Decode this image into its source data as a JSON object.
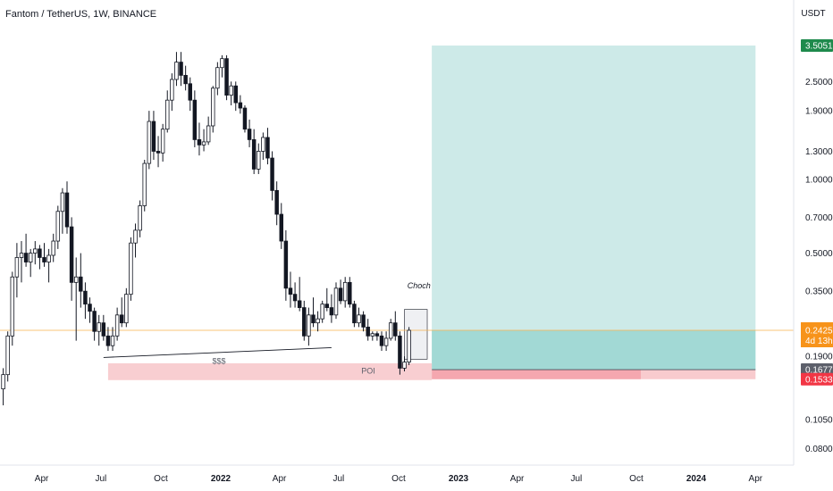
{
  "chart_data": {
    "type": "candlestick",
    "title": "Fantom / TetherUS, 1W, BINANCE",
    "y_unit_label": "USDT",
    "y_scale": "log",
    "ylim": [
      0.065,
      4.5
    ],
    "y_ticks": [
      "2.5000",
      "1.9000",
      "1.3000",
      "1.0000",
      "0.7000",
      "0.5000",
      "0.3500",
      "0.1900",
      "0.1050",
      "0.0800"
    ],
    "x_ticks": [
      {
        "label": "Apr",
        "bold": false,
        "date": "2021-04-01"
      },
      {
        "label": "Jul",
        "bold": false,
        "date": "2021-07-01"
      },
      {
        "label": "Oct",
        "bold": false,
        "date": "2021-10-01"
      },
      {
        "label": "2022",
        "bold": true,
        "date": "2022-01-01"
      },
      {
        "label": "Apr",
        "bold": false,
        "date": "2022-04-01"
      },
      {
        "label": "Jul",
        "bold": false,
        "date": "2022-07-01"
      },
      {
        "label": "Oct",
        "bold": false,
        "date": "2022-10-01"
      },
      {
        "label": "2023",
        "bold": true,
        "date": "2023-01-01"
      },
      {
        "label": "Apr",
        "bold": false,
        "date": "2023-04-01"
      },
      {
        "label": "Jul",
        "bold": false,
        "date": "2023-07-01"
      },
      {
        "label": "Oct",
        "bold": false,
        "date": "2023-10-01"
      },
      {
        "label": "2024",
        "bold": true,
        "date": "2024-01-01"
      },
      {
        "label": "Apr",
        "bold": false,
        "date": "2024-04-01"
      }
    ],
    "first_candle_date": "2021-02-01",
    "candle_interval": "1W",
    "candles": [
      [
        0.14,
        0.17,
        0.12,
        0.16
      ],
      [
        0.16,
        0.24,
        0.15,
        0.23
      ],
      [
        0.23,
        0.42,
        0.21,
        0.4
      ],
      [
        0.4,
        0.55,
        0.33,
        0.48
      ],
      [
        0.48,
        0.56,
        0.38,
        0.5
      ],
      [
        0.5,
        0.6,
        0.44,
        0.46
      ],
      [
        0.46,
        0.52,
        0.4,
        0.5
      ],
      [
        0.5,
        0.56,
        0.45,
        0.52
      ],
      [
        0.52,
        0.54,
        0.43,
        0.48
      ],
      [
        0.48,
        0.55,
        0.44,
        0.46
      ],
      [
        0.46,
        0.52,
        0.38,
        0.49
      ],
      [
        0.49,
        0.6,
        0.46,
        0.56
      ],
      [
        0.56,
        0.78,
        0.52,
        0.74
      ],
      [
        0.74,
        0.92,
        0.6,
        0.88
      ],
      [
        0.88,
        0.98,
        0.6,
        0.64
      ],
      [
        0.64,
        0.7,
        0.32,
        0.38
      ],
      [
        0.38,
        0.48,
        0.22,
        0.4
      ],
      [
        0.4,
        0.5,
        0.3,
        0.35
      ],
      [
        0.35,
        0.38,
        0.27,
        0.31
      ],
      [
        0.31,
        0.33,
        0.26,
        0.29
      ],
      [
        0.29,
        0.3,
        0.22,
        0.24
      ],
      [
        0.24,
        0.28,
        0.21,
        0.26
      ],
      [
        0.26,
        0.28,
        0.22,
        0.23
      ],
      [
        0.23,
        0.25,
        0.2,
        0.21
      ],
      [
        0.21,
        0.25,
        0.2,
        0.23
      ],
      [
        0.23,
        0.3,
        0.22,
        0.28
      ],
      [
        0.28,
        0.33,
        0.25,
        0.26
      ],
      [
        0.26,
        0.36,
        0.25,
        0.34
      ],
      [
        0.34,
        0.58,
        0.32,
        0.55
      ],
      [
        0.55,
        0.66,
        0.48,
        0.62
      ],
      [
        0.62,
        0.82,
        0.58,
        0.78
      ],
      [
        0.78,
        1.2,
        0.74,
        1.16
      ],
      [
        1.16,
        1.9,
        1.1,
        1.72
      ],
      [
        1.72,
        1.9,
        1.2,
        1.3
      ],
      [
        1.3,
        1.5,
        1.12,
        1.28
      ],
      [
        1.28,
        1.68,
        1.18,
        1.6
      ],
      [
        1.6,
        2.3,
        1.55,
        2.1
      ],
      [
        2.1,
        2.7,
        1.9,
        2.55
      ],
      [
        2.55,
        3.3,
        2.4,
        3.0
      ],
      [
        3.0,
        3.3,
        2.4,
        2.65
      ],
      [
        2.65,
        2.9,
        2.3,
        2.45
      ],
      [
        2.45,
        2.6,
        1.9,
        2.1
      ],
      [
        2.1,
        2.3,
        1.35,
        1.45
      ],
      [
        1.45,
        1.7,
        1.25,
        1.38
      ],
      [
        1.38,
        1.6,
        1.3,
        1.42
      ],
      [
        1.42,
        1.8,
        1.38,
        1.65
      ],
      [
        1.65,
        2.4,
        1.55,
        2.35
      ],
      [
        2.35,
        3.0,
        2.2,
        2.85
      ],
      [
        2.85,
        3.2,
        2.6,
        3.1
      ],
      [
        3.1,
        3.2,
        2.1,
        2.2
      ],
      [
        2.2,
        2.5,
        2.0,
        2.4
      ],
      [
        2.4,
        2.5,
        1.9,
        2.05
      ],
      [
        2.05,
        2.2,
        1.85,
        1.95
      ],
      [
        1.95,
        2.0,
        1.55,
        1.6
      ],
      [
        1.6,
        1.75,
        1.35,
        1.45
      ],
      [
        1.45,
        1.6,
        1.05,
        1.1
      ],
      [
        1.1,
        1.4,
        1.05,
        1.3
      ],
      [
        1.3,
        1.55,
        1.2,
        1.48
      ],
      [
        1.48,
        1.62,
        1.15,
        1.22
      ],
      [
        1.22,
        1.3,
        0.82,
        0.9
      ],
      [
        0.9,
        0.98,
        0.65,
        0.72
      ],
      [
        0.72,
        0.8,
        0.52,
        0.56
      ],
      [
        0.56,
        0.62,
        0.32,
        0.36
      ],
      [
        0.36,
        0.42,
        0.3,
        0.34
      ],
      [
        0.34,
        0.38,
        0.3,
        0.32
      ],
      [
        0.32,
        0.4,
        0.29,
        0.3
      ],
      [
        0.3,
        0.32,
        0.22,
        0.23
      ],
      [
        0.23,
        0.3,
        0.21,
        0.28
      ],
      [
        0.28,
        0.33,
        0.25,
        0.26
      ],
      [
        0.26,
        0.29,
        0.24,
        0.27
      ],
      [
        0.27,
        0.32,
        0.26,
        0.31
      ],
      [
        0.31,
        0.36,
        0.29,
        0.3
      ],
      [
        0.3,
        0.34,
        0.26,
        0.28
      ],
      [
        0.28,
        0.38,
        0.27,
        0.36
      ],
      [
        0.36,
        0.39,
        0.31,
        0.32
      ],
      [
        0.32,
        0.4,
        0.3,
        0.38
      ],
      [
        0.38,
        0.4,
        0.3,
        0.31
      ],
      [
        0.31,
        0.32,
        0.25,
        0.26
      ],
      [
        0.26,
        0.3,
        0.25,
        0.28
      ],
      [
        0.28,
        0.29,
        0.24,
        0.25
      ],
      [
        0.25,
        0.27,
        0.22,
        0.23
      ],
      [
        0.23,
        0.24,
        0.22,
        0.235
      ],
      [
        0.235,
        0.24,
        0.22,
        0.23
      ],
      [
        0.23,
        0.24,
        0.2,
        0.21
      ],
      [
        0.21,
        0.24,
        0.2,
        0.225
      ],
      [
        0.225,
        0.27,
        0.22,
        0.26
      ],
      [
        0.26,
        0.29,
        0.22,
        0.23
      ],
      [
        0.23,
        0.24,
        0.16,
        0.17
      ],
      [
        0.17,
        0.19,
        0.165,
        0.18
      ],
      [
        0.18,
        0.25,
        0.175,
        0.2425
      ]
    ],
    "annotations": {
      "choch": "Choch",
      "sss": "$$$",
      "poi": "POI"
    },
    "price_labels": {
      "target": "3.5051",
      "current": "0.2425",
      "countdown": "4d 13h",
      "entry": "0.1677",
      "stop": "0.1533"
    },
    "position": {
      "target": 3.5051,
      "entry": 0.1677,
      "stop": 0.1533,
      "start_date": "2022-11-21",
      "end_date": "2024-04-01"
    },
    "colors": {
      "up": "#26a69a",
      "down": "#131722",
      "profit_zone": "#b2dfdb",
      "profit_zone_strong": "#80cbc4",
      "loss_zone": "#f7c5c9",
      "current_badge": "#f7931a",
      "target_badge": "#1e8a4c",
      "entry_badge": "#5d606b",
      "stop_badge": "#f23645",
      "current_line": "#f7b24d"
    }
  }
}
